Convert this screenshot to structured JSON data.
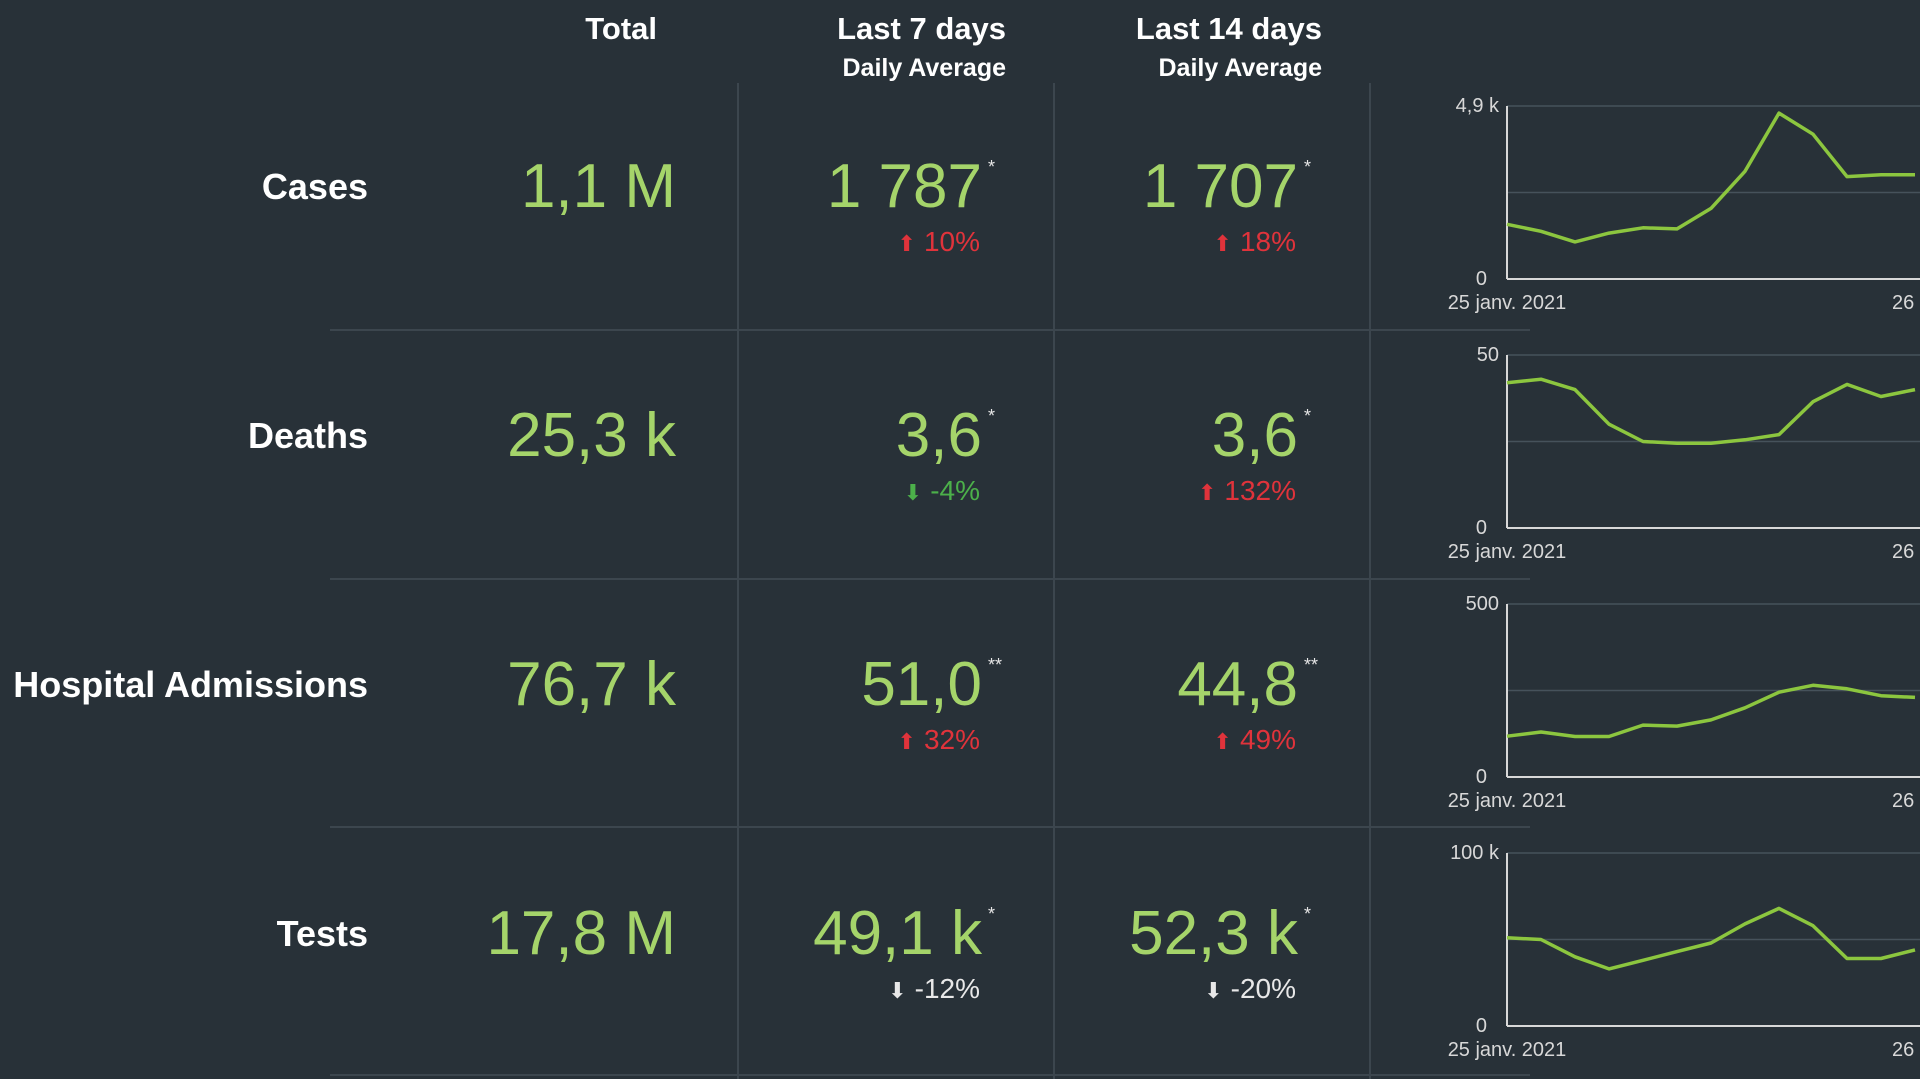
{
  "header": {
    "total": "Total",
    "last7": "Last 7 days",
    "last14": "Last 14 days",
    "daily_avg_7": "Daily Average",
    "daily_avg_14": "Daily Average"
  },
  "colors": {
    "background": "#283138",
    "value_green": "#a5d46a",
    "increase_red": "#e0333b",
    "decrease_green": "#4cb04a",
    "neutral_white": "#e8e8e8",
    "line_green": "#8cc63f"
  },
  "rows": [
    {
      "label": "Cases",
      "total": "1,1 M",
      "avg7": "1 787",
      "avg7_mark": "*",
      "delta7": "10%",
      "delta7_dir": "up-red",
      "delta7_icon": "arrow-up-icon",
      "avg14": "1 707",
      "avg14_mark": "*",
      "delta14": "18%",
      "delta14_dir": "up-red",
      "delta14_icon": "arrow-up-icon"
    },
    {
      "label": "Deaths",
      "total": "25,3 k",
      "avg7": "3,6",
      "avg7_mark": "*",
      "delta7": "-4%",
      "delta7_dir": "down-green",
      "delta7_icon": "arrow-down-icon",
      "avg14": "3,6",
      "avg14_mark": "*",
      "delta14": "132%",
      "delta14_dir": "up-red",
      "delta14_icon": "arrow-up-icon"
    },
    {
      "label": "Hospital Admissions",
      "total": "76,7 k",
      "avg7": "51,0",
      "avg7_mark": "**",
      "delta7": "32%",
      "delta7_dir": "up-red",
      "delta7_icon": "arrow-up-icon",
      "avg14": "44,8",
      "avg14_mark": "**",
      "delta14": "49%",
      "delta14_dir": "up-red",
      "delta14_icon": "arrow-up-icon"
    },
    {
      "label": "Tests",
      "total": "17,8 M",
      "avg7": "49,1 k",
      "avg7_mark": "*",
      "delta7": "-12%",
      "delta7_dir": "down-neutral",
      "delta7_icon": "arrow-down-icon",
      "avg14": "52,3 k",
      "avg14_mark": "*",
      "delta14": "-20%",
      "delta14_dir": "down-neutral",
      "delta14_icon": "arrow-down-icon"
    }
  ],
  "chart_data": [
    {
      "type": "line",
      "series_of": "Cases",
      "ylim": [
        0,
        4900
      ],
      "ytick_labels": [
        "4,9 k",
        "0"
      ],
      "xtick_labels": [
        "25 janv. 2021",
        "26"
      ],
      "grid": true,
      "y": [
        1550,
        1350,
        1050,
        1300,
        1450,
        1420,
        2000,
        3050,
        4700,
        4100,
        2900,
        2950,
        2950
      ]
    },
    {
      "type": "line",
      "series_of": "Deaths",
      "ylim": [
        0,
        50
      ],
      "ytick_labels": [
        "50",
        "0"
      ],
      "xtick_labels": [
        "25 janv. 2021",
        "26"
      ],
      "grid": true,
      "y": [
        42,
        43,
        40,
        30,
        25,
        24.5,
        24.5,
        25.5,
        27,
        36.5,
        41.5,
        38,
        40
      ]
    },
    {
      "type": "line",
      "series_of": "Hospital Admissions",
      "ylim": [
        0,
        500
      ],
      "ytick_labels": [
        "500",
        "0"
      ],
      "xtick_labels": [
        "25 janv. 2021",
        "26"
      ],
      "grid": true,
      "y": [
        118,
        130,
        117,
        117,
        150,
        147,
        165,
        200,
        245,
        265,
        255,
        235,
        230
      ]
    },
    {
      "type": "line",
      "series_of": "Tests",
      "ylim": [
        0,
        100000
      ],
      "ytick_labels": [
        "100 k",
        "0"
      ],
      "xtick_labels": [
        "25 janv. 2021",
        "26"
      ],
      "grid": true,
      "y": [
        51000,
        50000,
        40000,
        33000,
        38000,
        43000,
        48000,
        59000,
        68000,
        58000,
        39000,
        39000,
        44000
      ]
    }
  ]
}
